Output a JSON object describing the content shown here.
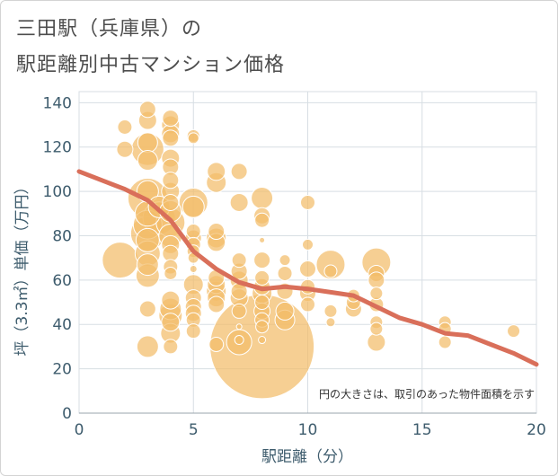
{
  "title_lines": [
    "三田駅（兵庫県）の",
    "駅距離別中古マンション価格"
  ],
  "chart_data": {
    "type": "scatter",
    "xlabel": "駅距離（分）",
    "ylabel": "坪（3.3㎡）単価（万円）",
    "xlim": [
      0,
      20
    ],
    "ylim": [
      0,
      145
    ],
    "xticks": [
      0,
      5,
      10,
      15,
      20
    ],
    "yticks": [
      0,
      20,
      40,
      60,
      80,
      100,
      120,
      140
    ],
    "grid": true,
    "annotation": "円の大きさは、取引のあった物件面積を示す",
    "colors": {
      "bubble": "#f2bc6a",
      "trend": "#d96f5a",
      "axis_text": "#3e5c6d",
      "grid": "#d7dee3"
    },
    "trend_line": {
      "x": [
        0,
        1,
        2,
        3,
        4,
        5,
        6,
        7,
        8,
        9,
        10,
        11,
        12,
        13,
        14,
        15,
        16,
        17,
        18,
        19,
        20
      ],
      "y": [
        109,
        105,
        101,
        96,
        87,
        73,
        65,
        59,
        56,
        57,
        56,
        54.5,
        53,
        48,
        43,
        40,
        36,
        35,
        31,
        27,
        22
      ]
    },
    "points": [
      {
        "x": 2,
        "y": 129,
        "size": 8
      },
      {
        "x": 2,
        "y": 119,
        "size": 9
      },
      {
        "x": 1.8,
        "y": 69,
        "size": 20
      },
      {
        "x": 3,
        "y": 137,
        "size": 9
      },
      {
        "x": 3,
        "y": 132,
        "size": 10
      },
      {
        "x": 3,
        "y": 122,
        "size": 11
      },
      {
        "x": 3,
        "y": 119,
        "size": 18
      },
      {
        "x": 3,
        "y": 114,
        "size": 11
      },
      {
        "x": 3,
        "y": 100,
        "size": 12
      },
      {
        "x": 3,
        "y": 97,
        "size": 22
      },
      {
        "x": 3,
        "y": 90,
        "size": 14
      },
      {
        "x": 3,
        "y": 85,
        "size": 16
      },
      {
        "x": 3,
        "y": 81,
        "size": 19
      },
      {
        "x": 3,
        "y": 78,
        "size": 13
      },
      {
        "x": 3,
        "y": 72,
        "size": 14
      },
      {
        "x": 3,
        "y": 67,
        "size": 12
      },
      {
        "x": 3,
        "y": 62,
        "size": 13
      },
      {
        "x": 3,
        "y": 47,
        "size": 9
      },
      {
        "x": 3,
        "y": 30,
        "size": 12
      },
      {
        "x": 3.5,
        "y": 88,
        "size": 18
      },
      {
        "x": 3.5,
        "y": 93,
        "size": 12
      },
      {
        "x": 4,
        "y": 133,
        "size": 9
      },
      {
        "x": 4,
        "y": 130,
        "size": 10
      },
      {
        "x": 4,
        "y": 126,
        "size": 10
      },
      {
        "x": 4,
        "y": 124,
        "size": 9
      },
      {
        "x": 4,
        "y": 115,
        "size": 10
      },
      {
        "x": 4,
        "y": 111,
        "size": 9
      },
      {
        "x": 4,
        "y": 105,
        "size": 9
      },
      {
        "x": 4,
        "y": 100,
        "size": 10
      },
      {
        "x": 4,
        "y": 95,
        "size": 9
      },
      {
        "x": 4,
        "y": 91,
        "size": 12
      },
      {
        "x": 4,
        "y": 86,
        "size": 16
      },
      {
        "x": 4,
        "y": 80,
        "size": 13
      },
      {
        "x": 4,
        "y": 76,
        "size": 10
      },
      {
        "x": 4,
        "y": 72,
        "size": 9
      },
      {
        "x": 4,
        "y": 66,
        "size": 8
      },
      {
        "x": 4,
        "y": 63,
        "size": 7
      },
      {
        "x": 4,
        "y": 51,
        "size": 10
      },
      {
        "x": 4,
        "y": 47,
        "size": 12
      },
      {
        "x": 4,
        "y": 44,
        "size": 13
      },
      {
        "x": 4,
        "y": 41,
        "size": 10
      },
      {
        "x": 4,
        "y": 36,
        "size": 11
      },
      {
        "x": 4,
        "y": 30,
        "size": 8
      },
      {
        "x": 5,
        "y": 125,
        "size": 7
      },
      {
        "x": 5,
        "y": 124,
        "size": 6
      },
      {
        "x": 5,
        "y": 95,
        "size": 16
      },
      {
        "x": 5,
        "y": 93,
        "size": 12
      },
      {
        "x": 5,
        "y": 82,
        "size": 8
      },
      {
        "x": 5,
        "y": 79,
        "size": 9
      },
      {
        "x": 5,
        "y": 76,
        "size": 8
      },
      {
        "x": 5,
        "y": 73,
        "size": 7
      },
      {
        "x": 5,
        "y": 70,
        "size": 6
      },
      {
        "x": 5,
        "y": 65,
        "size": 4
      },
      {
        "x": 5,
        "y": 58,
        "size": 11
      },
      {
        "x": 5,
        "y": 52,
        "size": 9
      },
      {
        "x": 5,
        "y": 48,
        "size": 9
      },
      {
        "x": 5,
        "y": 45,
        "size": 9
      },
      {
        "x": 5,
        "y": 42,
        "size": 8
      },
      {
        "x": 5,
        "y": 37,
        "size": 8
      },
      {
        "x": 6,
        "y": 109,
        "size": 10
      },
      {
        "x": 6,
        "y": 104,
        "size": 11
      },
      {
        "x": 6,
        "y": 82,
        "size": 9
      },
      {
        "x": 6,
        "y": 79,
        "size": 11
      },
      {
        "x": 6,
        "y": 77,
        "size": 10
      },
      {
        "x": 6,
        "y": 61,
        "size": 9
      },
      {
        "x": 6,
        "y": 58,
        "size": 10
      },
      {
        "x": 6,
        "y": 55,
        "size": 11
      },
      {
        "x": 6,
        "y": 52,
        "size": 10
      },
      {
        "x": 6,
        "y": 49,
        "size": 9
      },
      {
        "x": 6,
        "y": 31,
        "size": 8
      },
      {
        "x": 7,
        "y": 109,
        "size": 9
      },
      {
        "x": 7,
        "y": 95,
        "size": 10
      },
      {
        "x": 7,
        "y": 69,
        "size": 8
      },
      {
        "x": 7,
        "y": 64,
        "size": 9
      },
      {
        "x": 7,
        "y": 60,
        "size": 10
      },
      {
        "x": 7,
        "y": 55,
        "size": 9
      },
      {
        "x": 7,
        "y": 52,
        "size": 10
      },
      {
        "x": 7,
        "y": 46,
        "size": 8
      },
      {
        "x": 7,
        "y": 39,
        "size": 3
      },
      {
        "x": 7,
        "y": 32,
        "size": 14
      },
      {
        "x": 7,
        "y": 33,
        "size": 5
      },
      {
        "x": 8,
        "y": 97,
        "size": 12
      },
      {
        "x": 8,
        "y": 89,
        "size": 9
      },
      {
        "x": 8,
        "y": 87,
        "size": 8
      },
      {
        "x": 8,
        "y": 78,
        "size": 3
      },
      {
        "x": 8,
        "y": 69,
        "size": 9
      },
      {
        "x": 8,
        "y": 61,
        "size": 8
      },
      {
        "x": 8,
        "y": 57,
        "size": 9
      },
      {
        "x": 8,
        "y": 54,
        "size": 11
      },
      {
        "x": 8,
        "y": 50,
        "size": 8
      },
      {
        "x": 8,
        "y": 46,
        "size": 9
      },
      {
        "x": 8,
        "y": 42,
        "size": 8
      },
      {
        "x": 8,
        "y": 39,
        "size": 7
      },
      {
        "x": 8,
        "y": 33,
        "size": 4
      },
      {
        "x": 8,
        "y": 30,
        "size": 58
      },
      {
        "x": 9,
        "y": 69,
        "size": 6
      },
      {
        "x": 9,
        "y": 63,
        "size": 8
      },
      {
        "x": 9,
        "y": 55,
        "size": 9
      },
      {
        "x": 9,
        "y": 46,
        "size": 10
      },
      {
        "x": 9,
        "y": 42,
        "size": 11
      },
      {
        "x": 10,
        "y": 95,
        "size": 8
      },
      {
        "x": 10,
        "y": 76,
        "size": 6
      },
      {
        "x": 10,
        "y": 65,
        "size": 9
      },
      {
        "x": 10,
        "y": 57,
        "size": 8
      },
      {
        "x": 10,
        "y": 54,
        "size": 9
      },
      {
        "x": 10,
        "y": 49,
        "size": 8
      },
      {
        "x": 11,
        "y": 67,
        "size": 16
      },
      {
        "x": 11,
        "y": 64,
        "size": 7
      },
      {
        "x": 11,
        "y": 46,
        "size": 7
      },
      {
        "x": 11,
        "y": 41,
        "size": 5
      },
      {
        "x": 12,
        "y": 53,
        "size": 7
      },
      {
        "x": 12,
        "y": 50,
        "size": 8
      },
      {
        "x": 12,
        "y": 47,
        "size": 9
      },
      {
        "x": 13,
        "y": 68,
        "size": 16
      },
      {
        "x": 13,
        "y": 63,
        "size": 9
      },
      {
        "x": 13,
        "y": 60,
        "size": 9
      },
      {
        "x": 13,
        "y": 54,
        "size": 7
      },
      {
        "x": 13,
        "y": 49,
        "size": 8
      },
      {
        "x": 13,
        "y": 41,
        "size": 7
      },
      {
        "x": 13,
        "y": 38,
        "size": 7
      },
      {
        "x": 13,
        "y": 32,
        "size": 10
      },
      {
        "x": 16,
        "y": 41,
        "size": 7
      },
      {
        "x": 16,
        "y": 38,
        "size": 7
      },
      {
        "x": 16,
        "y": 32,
        "size": 7
      },
      {
        "x": 19,
        "y": 37,
        "size": 7
      }
    ]
  }
}
